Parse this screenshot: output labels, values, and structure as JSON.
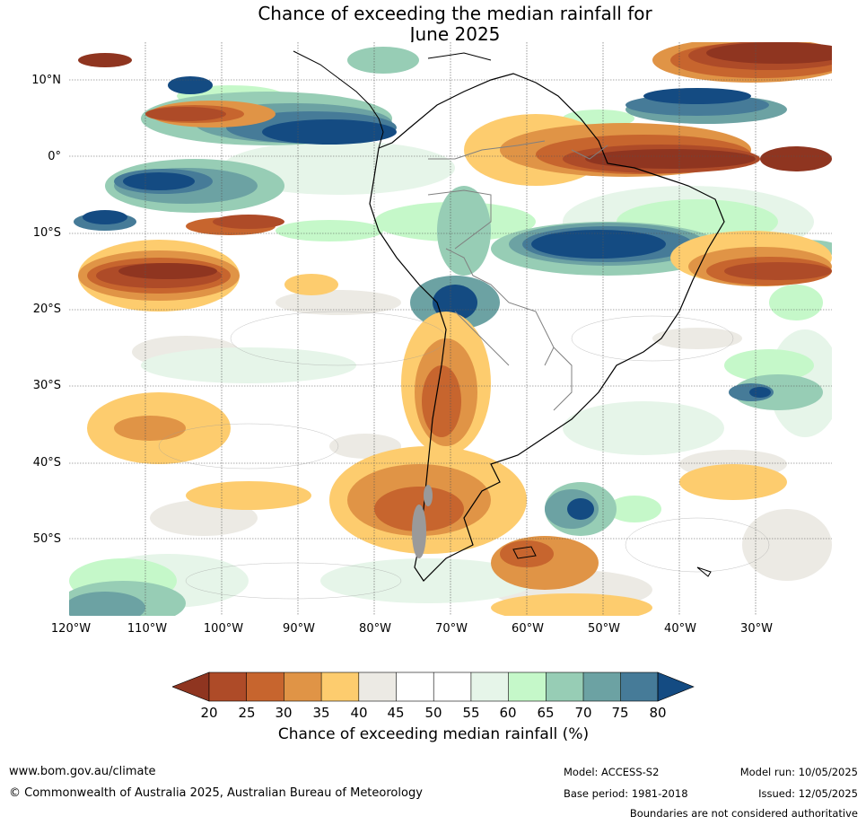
{
  "title": {
    "line1": "Chance of exceeding the median rainfall for",
    "line2": "June 2025"
  },
  "map": {
    "lat_ticks": [
      "10°N",
      "0°",
      "10°S",
      "20°S",
      "30°S",
      "40°S",
      "50°S"
    ],
    "lon_ticks": [
      "120°W",
      "110°W",
      "100°W",
      "90°W",
      "80°W",
      "70°W",
      "60°W",
      "50°W",
      "40°W",
      "30°W"
    ],
    "colors": {
      "c_lt20": "#8f3520",
      "c_20": "#ae4b28",
      "c_25": "#c7652e",
      "c_30": "#e09446",
      "c_35": "#fdcc6e",
      "c_40": "#eceae4",
      "c_45": "#ffffff",
      "c_55": "#e6f5e9",
      "c_60": "#c5f8c9",
      "c_65": "#97cdb5",
      "c_70": "#6ca2a3",
      "c_75": "#467b98",
      "c_gt80": "#144b82"
    }
  },
  "colorbar": {
    "labels": [
      "20",
      "25",
      "30",
      "35",
      "40",
      "45",
      "50",
      "55",
      "60",
      "65",
      "70",
      "75",
      "80"
    ],
    "title": "Chance of exceeding median rainfall (%)"
  },
  "footer": {
    "website": "www.bom.gov.au/climate",
    "copyright": "© Commonwealth of Australia 2025, Australian Bureau of Meteorology",
    "model": "Model: ACCESS-S2",
    "base_period": "Base period: 1981-2018",
    "model_run": "Model run: 10/05/2025",
    "issued": "Issued: 12/05/2025",
    "disclaimer": "Boundaries are not considered authoritative"
  }
}
